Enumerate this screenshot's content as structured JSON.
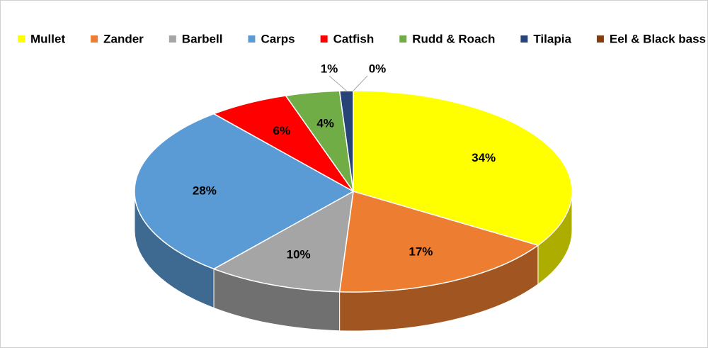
{
  "chart_data": {
    "type": "pie",
    "categories": [
      "Mullet",
      "Zander",
      "Barbell",
      "Carps",
      "Catfish",
      "Rudd & Roach",
      "Tilapia",
      "Eel & Black bass"
    ],
    "values": [
      34,
      17,
      10,
      28,
      6,
      4,
      1,
      0
    ],
    "value_labels": [
      "34%",
      "17%",
      "10%",
      "28%",
      "6%",
      "4%",
      "1%",
      "0%"
    ],
    "colors": [
      "#ffff00",
      "#ed7d31",
      "#a5a5a5",
      "#5b9bd5",
      "#ff0000",
      "#70ad47",
      "#264478",
      "#843c0c"
    ],
    "legend": "top"
  }
}
